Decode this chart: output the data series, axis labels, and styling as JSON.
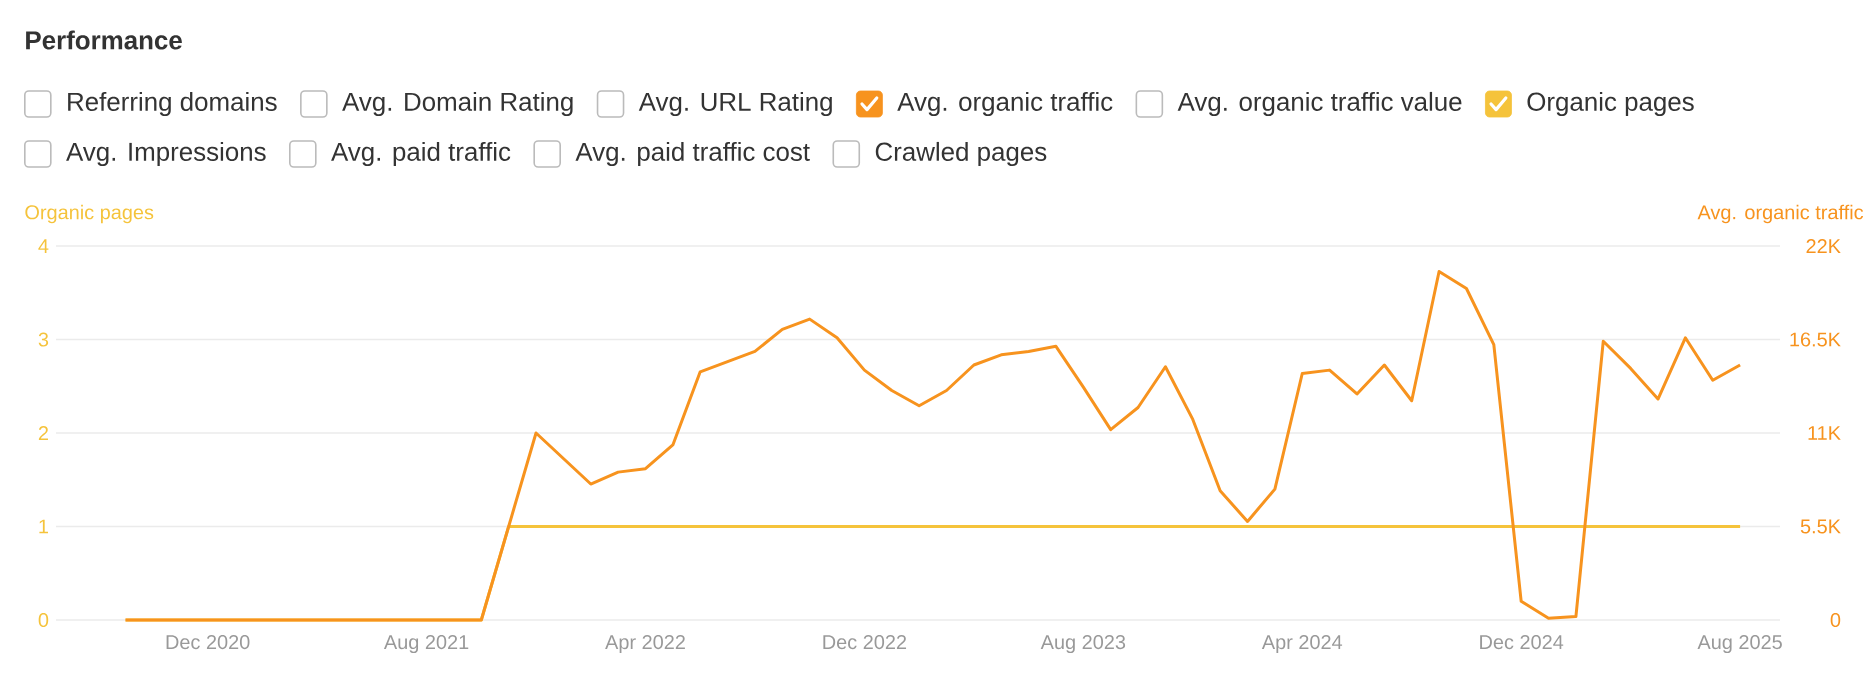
{
  "chart_data": {
    "type": "line",
    "title": "Performance",
    "ylabel": "Organic pages",
    "y2label": "Avg. organic traffic",
    "annotations": [
      "Referring domains",
      "Avg. Domain Rating",
      "Avg. URL Rating",
      "Avg. organic traffic value",
      "Avg. Impressions",
      "Avg. paid traffic",
      "Avg. paid traffic cost",
      "Crawled pages"
    ],
    "x": [
      "2020-09",
      "2020-10",
      "2020-11",
      "2020-12",
      "2021-01",
      "2021-02",
      "2021-03",
      "2021-04",
      "2021-05",
      "2021-06",
      "2021-07",
      "2021-08",
      "2021-09",
      "2021-10",
      "2021-11",
      "2021-12",
      "2022-01",
      "2022-02",
      "2022-03",
      "2022-04",
      "2022-05",
      "2022-06",
      "2022-07",
      "2022-08",
      "2022-09",
      "2022-10",
      "2022-11",
      "2022-12",
      "2023-01",
      "2023-02",
      "2023-03",
      "2023-04",
      "2023-05",
      "2023-06",
      "2023-07",
      "2023-08",
      "2023-09",
      "2023-10",
      "2023-11",
      "2023-12",
      "2024-01",
      "2024-02",
      "2024-03",
      "2024-04",
      "2024-05",
      "2024-06",
      "2024-07",
      "2024-08",
      "2024-09",
      "2024-10",
      "2024-11",
      "2024-12",
      "2025-01",
      "2025-02",
      "2025-03",
      "2025-04",
      "2025-05",
      "2025-06",
      "2025-07",
      "2025-08"
    ],
    "series": [
      {
        "name": "Avg. organic traffic",
        "color": "#f7931e",
        "axis": "y2",
        "values": [
          0,
          0,
          0,
          0,
          0,
          0,
          0,
          0,
          0,
          0,
          0,
          0,
          0,
          0,
          5500,
          11000,
          9500,
          8000,
          8700,
          8900,
          10300,
          14600,
          15200,
          15800,
          17100,
          17700,
          16600,
          14700,
          13500,
          12600,
          13500,
          15000,
          15600,
          15800,
          16100,
          13700,
          11200,
          12500,
          14900,
          11800,
          7600,
          5800,
          7700,
          14500,
          14700,
          13300,
          15000,
          12900,
          20500,
          19500,
          16200,
          1100,
          100,
          200,
          16400,
          14800,
          13000,
          16600,
          14100,
          15000
        ]
      },
      {
        "name": "Organic pages",
        "color": "#f5c33b",
        "axis": "y",
        "values": [
          0,
          0,
          0,
          0,
          0,
          0,
          0,
          0,
          0,
          0,
          0,
          0,
          0,
          0,
          1,
          1,
          1,
          1,
          1,
          1,
          1,
          1,
          1,
          1,
          1,
          1,
          1,
          1,
          1,
          1,
          1,
          1,
          1,
          1,
          1,
          1,
          1,
          1,
          1,
          1,
          1,
          1,
          1,
          1,
          1,
          1,
          1,
          1,
          1,
          1,
          1,
          1,
          1,
          1,
          1,
          1,
          1,
          1,
          1,
          1
        ]
      }
    ],
    "xlim": [
      "2020-06-15",
      "2025-09-15"
    ],
    "xticks": [
      {
        "value": "2020-12",
        "label": "Dec 2020"
      },
      {
        "value": "2021-08",
        "label": "Aug 2021"
      },
      {
        "value": "2022-04",
        "label": "Apr 2022"
      },
      {
        "value": "2022-12",
        "label": "Dec 2022"
      },
      {
        "value": "2023-08",
        "label": "Aug 2023"
      },
      {
        "value": "2024-04",
        "label": "Apr 2024"
      },
      {
        "value": "2024-12",
        "label": "Dec 2024"
      },
      {
        "value": "2025-08",
        "label": "Aug 2025"
      }
    ],
    "ylim": [
      0,
      4
    ],
    "yticks": [
      0,
      1,
      2,
      3,
      4
    ],
    "y2lim": [
      0,
      22000
    ],
    "y2ticks": [
      0,
      {
        "value": 5500,
        "label": "5.5K"
      },
      {
        "value": 11000,
        "label": "11K"
      },
      {
        "value": 16500,
        "label": "16.5K"
      },
      {
        "value": 22000,
        "label": "22K"
      }
    ],
    "grid": "y",
    "legend": "top",
    "marker": "none",
    "line_style": "solid"
  }
}
